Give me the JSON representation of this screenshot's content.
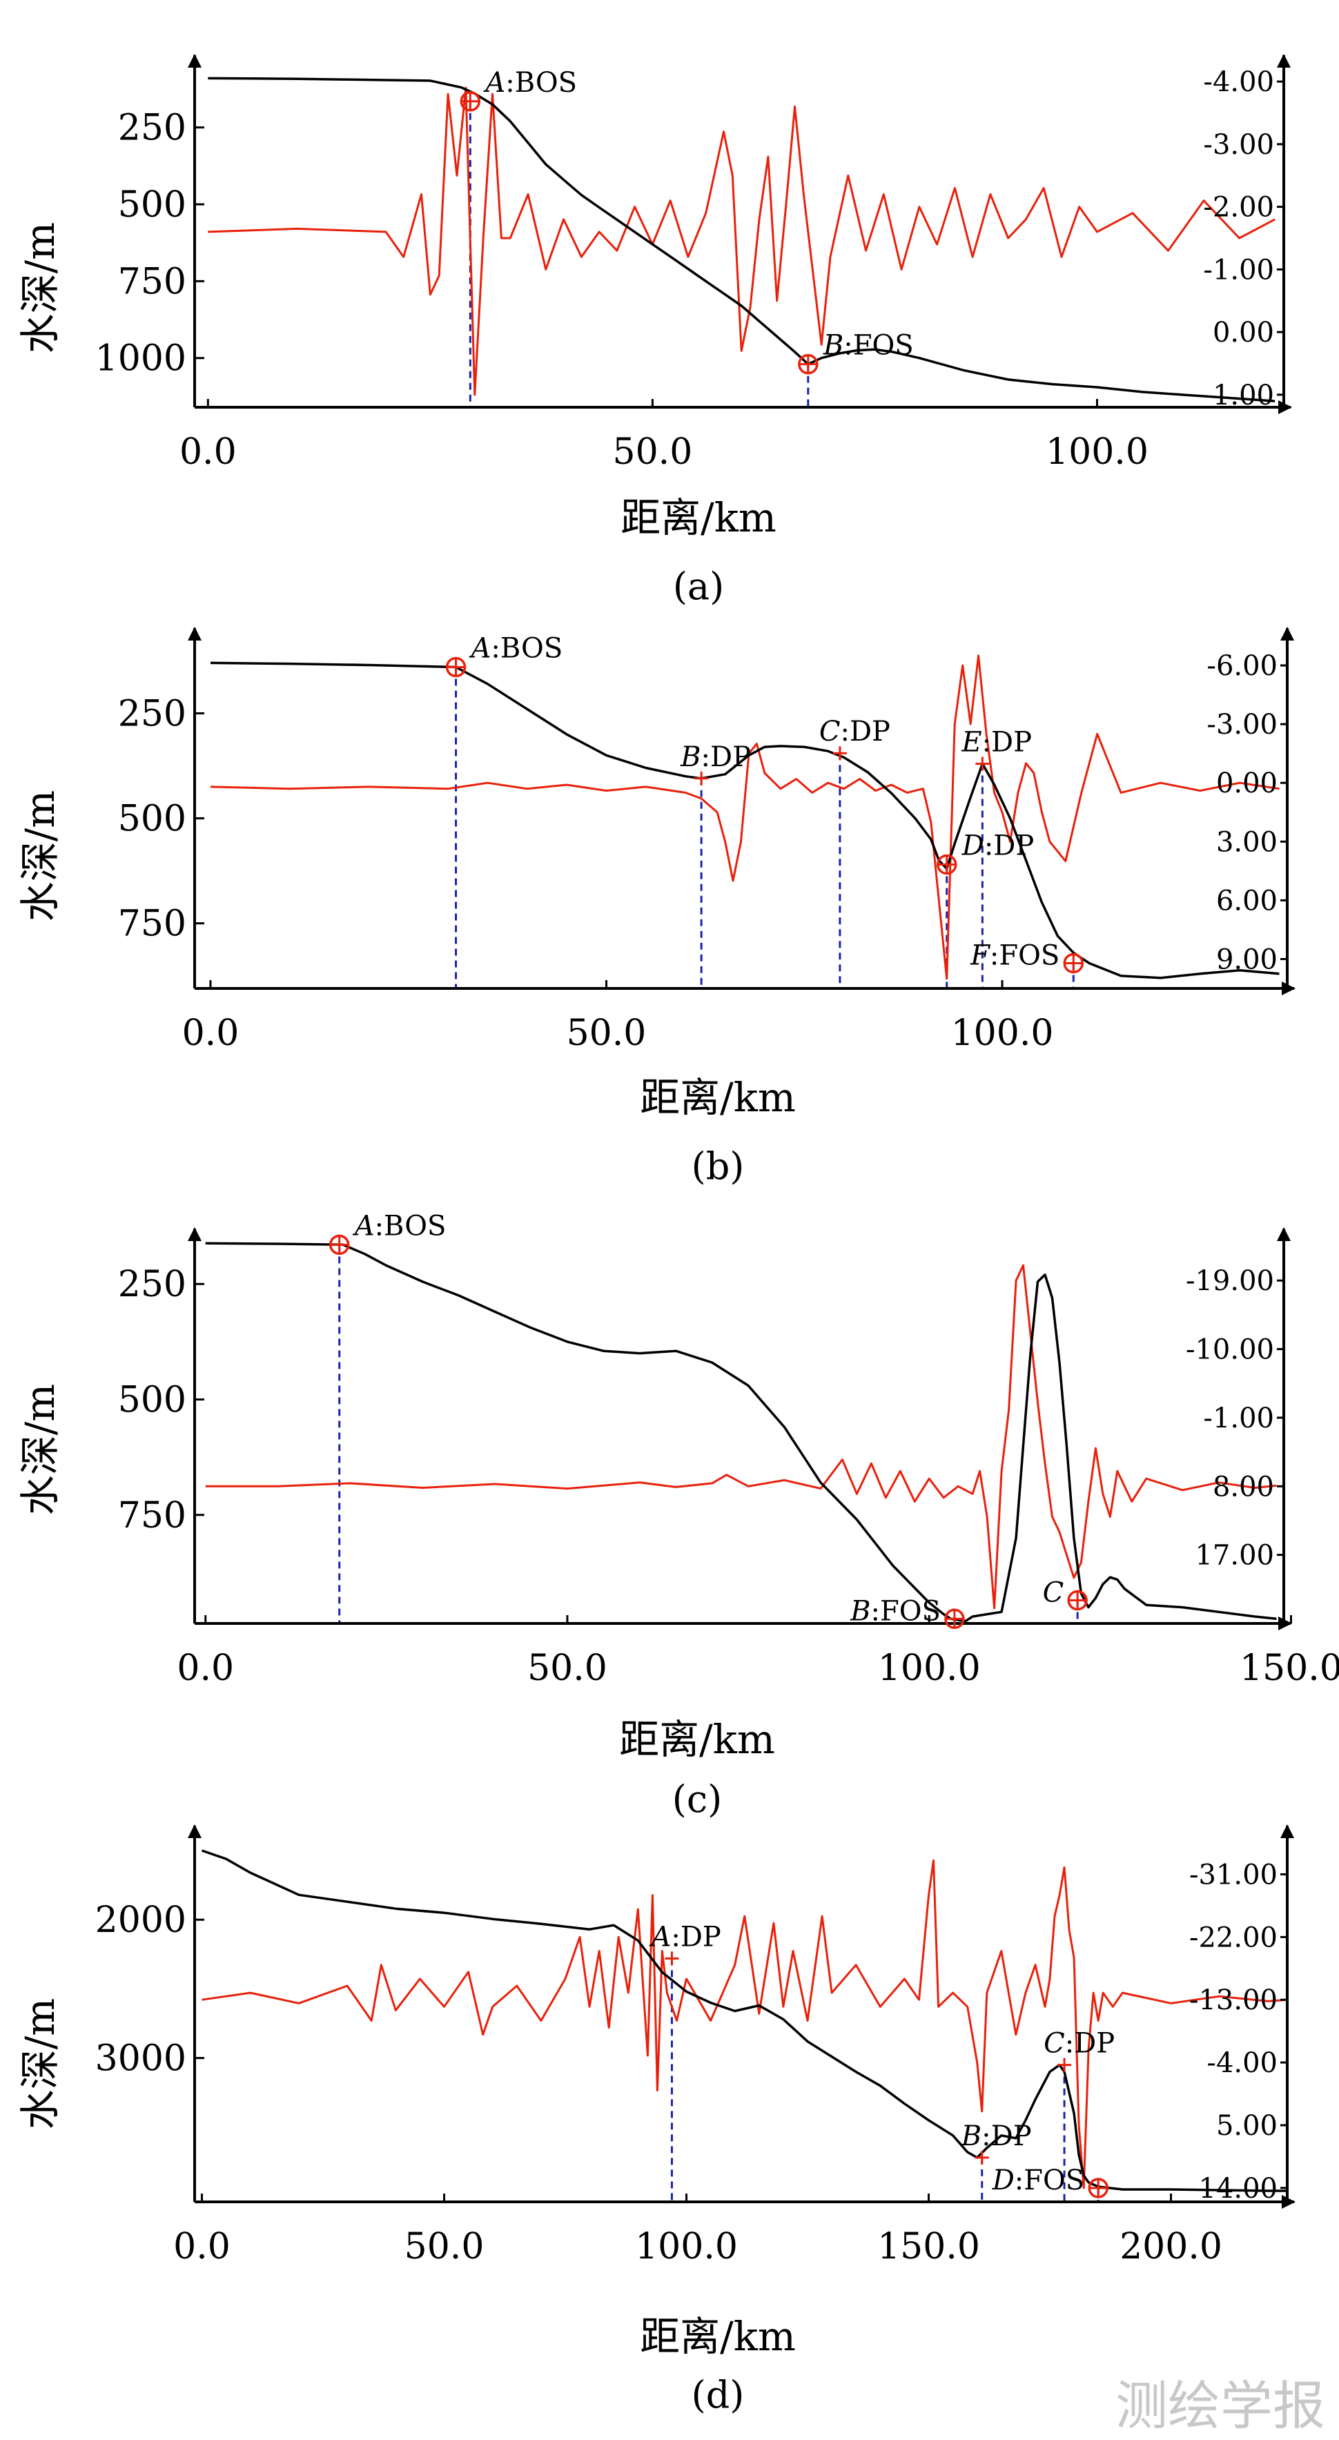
{
  "watermark": "测绘学报",
  "colors": {
    "depth_line": "#000000",
    "gravity_line": "#e8210c",
    "marker": "#e8210c",
    "guide": "#1a24a8"
  },
  "chart_data": [
    {
      "type": "line",
      "panel": "(a)",
      "caption": "(a)",
      "xlabel": "距离/km",
      "ylabel": "水深/m",
      "xlim": [
        -1.5,
        121
      ],
      "xticks": [
        0,
        50,
        100
      ],
      "xtick_labels": [
        "0.0",
        "50.0",
        "100.0"
      ],
      "ylim": [
        60,
        1160
      ],
      "yticks": [
        250,
        500,
        750,
        1000
      ],
      "ytick_labels": [
        "250",
        "500",
        "750",
        "1000"
      ],
      "right_ylim": [
        -4.2,
        1.2
      ],
      "right_ticks": [
        -4,
        -3,
        -2,
        -1,
        0,
        1
      ],
      "right_tick_labels": [
        "-4.00",
        "-3.00",
        "-2.00",
        "-1.00",
        "0.00",
        "1.00"
      ],
      "bathymetry": {
        "x": [
          0,
          5,
          10,
          15,
          20,
          25,
          28.5,
          30,
          32,
          34,
          36,
          38,
          40,
          42,
          44,
          46,
          48,
          50,
          52,
          54,
          56,
          58,
          60,
          62,
          64,
          66,
          67.5,
          69,
          71,
          73,
          75,
          77,
          80,
          85,
          90,
          95,
          100,
          105,
          110,
          115,
          120
        ],
        "y": [
          90,
          91,
          92,
          94,
          96,
          98,
          120,
          140,
          175,
          230,
          300,
          370,
          420,
          470,
          510,
          550,
          590,
          630,
          670,
          710,
          750,
          790,
          830,
          880,
          930,
          980,
          1020,
          1000,
          985,
          975,
          972,
          980,
          1000,
          1040,
          1070,
          1085,
          1095,
          1110,
          1120,
          1130,
          1140
        ]
      },
      "gravity_anomaly": {
        "x": [
          0,
          10,
          20,
          22,
          24,
          25,
          26,
          27,
          28,
          29,
          30,
          31,
          32,
          33,
          34,
          36,
          38,
          40,
          42,
          44,
          46,
          48,
          50,
          52,
          54,
          56,
          58,
          59,
          60,
          61,
          62,
          63,
          64,
          65,
          66,
          67,
          68,
          69,
          70,
          72,
          74,
          76,
          78,
          80,
          82,
          84,
          86,
          88,
          90,
          92,
          94,
          96,
          98,
          100,
          104,
          108,
          112,
          116,
          120
        ],
        "y": [
          -1.6,
          -1.65,
          -1.6,
          -1.2,
          -2.2,
          -0.6,
          -0.9,
          -3.8,
          -2.5,
          -3.9,
          1.0,
          -1.6,
          -3.8,
          -1.5,
          -1.5,
          -2.2,
          -1.0,
          -1.8,
          -1.2,
          -1.6,
          -1.3,
          -2.0,
          -1.4,
          -2.1,
          -1.2,
          -1.9,
          -3.2,
          -2.5,
          0.3,
          -0.4,
          -1.8,
          -2.8,
          -0.5,
          -2.0,
          -3.6,
          -2.2,
          -1.0,
          0.2,
          -1.2,
          -2.5,
          -1.3,
          -2.2,
          -1.0,
          -2.0,
          -1.4,
          -2.3,
          -1.2,
          -2.2,
          -1.5,
          -1.8,
          -2.3,
          -1.2,
          -2.0,
          -1.6,
          -1.9,
          -1.3,
          -2.1,
          -1.5,
          -1.8
        ]
      },
      "markers": [
        {
          "x": 29.5,
          "y": 165,
          "letter": "A",
          "label": ":BOS"
        },
        {
          "x": 67.5,
          "y": 1020,
          "letter": "B",
          "label": ":FOS"
        }
      ]
    },
    {
      "type": "line",
      "panel": "(b)",
      "caption": "(b)",
      "xlabel": "距离/km",
      "ylabel": "水深/m",
      "xlim": [
        -2,
        136
      ],
      "xticks": [
        0,
        50,
        100
      ],
      "xtick_labels": [
        "0.0",
        "50.0",
        "100.0"
      ],
      "ylim": [
        80,
        905
      ],
      "yticks": [
        250,
        500,
        750
      ],
      "ytick_labels": [
        "250",
        "500",
        "750"
      ],
      "right_ylim": [
        -7.2,
        10.5
      ],
      "right_ticks": [
        -6,
        -3,
        0,
        3,
        6,
        9
      ],
      "right_tick_labels": [
        "-6.00",
        "-3.00",
        "0.00",
        "3.00",
        "6.00",
        "9.00"
      ],
      "bathymetry": {
        "x": [
          0,
          10,
          20,
          31,
          35,
          40,
          45,
          50,
          55,
          60,
          62,
          65,
          68,
          70,
          72,
          75,
          78,
          80,
          83,
          86,
          89,
          91,
          92,
          93,
          94,
          96,
          97.5,
          99,
          101,
          103,
          105,
          107,
          109,
          111,
          115,
          120,
          125,
          130,
          135
        ],
        "y": [
          130,
          132,
          135,
          140,
          180,
          240,
          300,
          350,
          380,
          400,
          405,
          395,
          350,
          330,
          328,
          330,
          340,
          355,
          390,
          440,
          500,
          550,
          600,
          620,
          560,
          450,
          370,
          420,
          500,
          600,
          700,
          780,
          820,
          845,
          875,
          880,
          870,
          862,
          870
        ]
      },
      "gravity_anomaly": {
        "x": [
          0,
          10,
          20,
          30,
          35,
          40,
          45,
          50,
          55,
          60,
          62,
          64,
          65,
          66,
          67,
          68,
          69,
          70,
          72,
          74,
          76,
          78,
          80,
          82,
          84,
          86,
          88,
          90,
          91,
          92,
          93,
          94,
          95,
          96,
          97,
          98,
          99,
          100,
          101,
          102,
          103,
          104,
          105,
          106,
          108,
          110,
          112,
          115,
          120,
          125,
          130,
          135
        ],
        "y": [
          0.2,
          0.3,
          0.2,
          0.3,
          0.0,
          0.3,
          0.1,
          0.4,
          0.2,
          0.5,
          0.8,
          1.5,
          3.0,
          5.0,
          3.0,
          -1.5,
          -2.0,
          -0.5,
          0.3,
          -0.2,
          0.5,
          0.0,
          0.3,
          -0.2,
          0.4,
          0.1,
          0.5,
          0.3,
          2.0,
          6.0,
          10.0,
          -3.0,
          -6.0,
          -3.0,
          -6.5,
          -2.5,
          0.5,
          1.5,
          3.0,
          0.5,
          -1.0,
          -0.5,
          1.5,
          3.0,
          4.0,
          0.5,
          -2.5,
          0.5,
          0.0,
          0.4,
          0.0,
          0.3
        ]
      },
      "markers": [
        {
          "x": 31,
          "y": 140,
          "letter": "A",
          "label": ":BOS"
        },
        {
          "x": 93,
          "y": 610,
          "letter": "D",
          "label": ":DP"
        },
        {
          "x": 109,
          "y": 845,
          "letter": "F",
          "label": ":FOS"
        }
      ],
      "dp_points": [
        {
          "x": 62,
          "y": 405,
          "letter": "B",
          "label": ":DP"
        },
        {
          "x": 79.5,
          "y": 345,
          "letter": "C",
          "label": ":DP"
        },
        {
          "x": 97.5,
          "y": 370,
          "letter": "E",
          "label": ":DP"
        }
      ]
    },
    {
      "type": "line",
      "panel": "(c)",
      "caption": "(c)",
      "xlabel": "距离/km",
      "ylabel": "水深/m",
      "xlim": [
        -1.5,
        149
      ],
      "xticks": [
        0,
        50,
        100,
        150
      ],
      "xtick_labels": [
        "0.0",
        "50.0",
        "100.0",
        "150.0"
      ],
      "ylim": [
        160,
        985
      ],
      "yticks": [
        250,
        500,
        750
      ],
      "ytick_labels": [
        "250",
        "500",
        "750"
      ],
      "right_ylim": [
        -24,
        26
      ],
      "right_ticks": [
        -19,
        -10,
        -1,
        8,
        17
      ],
      "right_tick_labels": [
        "-19.00",
        "-10.00",
        "-1.00",
        "8.00",
        "17.00"
      ],
      "bathymetry": {
        "x": [
          0,
          10,
          19,
          22,
          25,
          30,
          35,
          40,
          45,
          50,
          55,
          60,
          65,
          70,
          75,
          80,
          85,
          90,
          95,
          100,
          102,
          103,
          105,
          106,
          108,
          110,
          112,
          113,
          114,
          115,
          116,
          117,
          118,
          119,
          120,
          121,
          122,
          123,
          124,
          125,
          126,
          127,
          130,
          135,
          140,
          145,
          148
        ],
        "y": [
          162,
          163,
          165,
          185,
          210,
          245,
          275,
          310,
          345,
          375,
          395,
          400,
          395,
          420,
          470,
          560,
          680,
          760,
          860,
          940,
          965,
          975,
          980,
          970,
          965,
          960,
          800,
          600,
          400,
          245,
          230,
          280,
          420,
          600,
          800,
          920,
          950,
          930,
          900,
          885,
          890,
          910,
          945,
          950,
          960,
          970,
          975
        ]
      },
      "gravity_anomaly": {
        "x": [
          0,
          10,
          20,
          30,
          40,
          50,
          60,
          65,
          70,
          72,
          75,
          80,
          85,
          88,
          90,
          92,
          94,
          96,
          98,
          100,
          102,
          104,
          106,
          107,
          108,
          109,
          110,
          111,
          112,
          113,
          114,
          115,
          116,
          117,
          118,
          119,
          120,
          121,
          122,
          123,
          124,
          125,
          126,
          128,
          130,
          135,
          140,
          145,
          148
        ],
        "y": [
          8.0,
          8.0,
          7.6,
          8.2,
          7.7,
          8.3,
          7.5,
          8.1,
          7.6,
          6.5,
          8.0,
          7.2,
          8.3,
          4.5,
          9.0,
          5.0,
          9.5,
          6.0,
          10.0,
          7.0,
          9.5,
          8.0,
          9.0,
          6.0,
          12.0,
          24.0,
          6.0,
          -2.0,
          -19.0,
          -21.0,
          -12.0,
          -3.0,
          5.0,
          12.0,
          14.0,
          17.0,
          20.0,
          18.0,
          10.0,
          3.0,
          9.0,
          12.0,
          6.0,
          10.0,
          7.0,
          8.5,
          7.5,
          8.2,
          7.9
        ]
      },
      "markers": [
        {
          "x": 18.5,
          "y": 165,
          "letter": "A",
          "label": ":BOS"
        },
        {
          "x": 103.5,
          "y": 975,
          "letter": "B",
          "label": ":FOS"
        },
        {
          "x": 120.5,
          "y": 935,
          "letter": "C",
          "label": ""
        }
      ]
    },
    {
      "type": "line",
      "panel": "(d)",
      "caption": "(d)",
      "xlabel": "距离/km",
      "ylabel": "水深/m",
      "xlim": [
        -1.5,
        224
      ],
      "xticks": [
        0,
        50,
        100,
        150,
        200
      ],
      "xtick_labels": [
        "0.0",
        "50.0",
        "100.0",
        "150.0",
        "200.0"
      ],
      "ylim": [
        1420,
        4040
      ],
      "yticks": [
        2000,
        3000
      ],
      "ytick_labels": [
        "2000",
        "3000"
      ],
      "right_ylim": [
        -36,
        16
      ],
      "right_ticks": [
        -31,
        -22,
        -13,
        -4,
        5,
        14
      ],
      "right_tick_labels": [
        "-31.00",
        "-22.00",
        "-13.00",
        "-4.00",
        "5.00",
        "14.00"
      ],
      "bathymetry": {
        "x": [
          0,
          5,
          10,
          20,
          30,
          40,
          50,
          60,
          70,
          80,
          85,
          90,
          95,
          100,
          105,
          110,
          115,
          120,
          125,
          130,
          135,
          140,
          145,
          150,
          155,
          158,
          160,
          162,
          165,
          168,
          170,
          172,
          175,
          177,
          178,
          180,
          181,
          182,
          183,
          185,
          190,
          200,
          210,
          220,
          224
        ],
        "y": [
          1500,
          1560,
          1660,
          1820,
          1870,
          1920,
          1950,
          1995,
          2030,
          2070,
          2040,
          2150,
          2380,
          2520,
          2600,
          2660,
          2620,
          2720,
          2880,
          2990,
          3100,
          3200,
          3330,
          3450,
          3560,
          3680,
          3720,
          3650,
          3560,
          3580,
          3450,
          3300,
          3100,
          3050,
          3100,
          3400,
          3700,
          3850,
          3900,
          3930,
          3950,
          3950,
          3955,
          3960,
          3960
        ]
      },
      "gravity_anomaly": {
        "x": [
          0,
          10,
          20,
          30,
          35,
          37,
          40,
          45,
          50,
          55,
          58,
          60,
          65,
          70,
          75,
          78,
          80,
          82,
          84,
          86,
          88,
          90,
          92,
          93,
          94,
          95,
          96,
          98,
          100,
          105,
          110,
          112,
          115,
          118,
          120,
          122,
          125,
          128,
          130,
          135,
          140,
          145,
          148,
          150,
          151,
          152,
          155,
          158,
          160,
          161,
          162,
          165,
          168,
          170,
          172,
          174,
          175,
          176,
          177,
          178,
          179,
          180,
          181,
          182,
          183,
          184,
          185,
          186,
          188,
          190,
          200,
          210,
          220,
          224
        ],
        "y": [
          -13.0,
          -14.0,
          -12.5,
          -15.0,
          -10.0,
          -18.0,
          -11.5,
          -16.0,
          -12.0,
          -17.0,
          -8.0,
          -12.0,
          -15.0,
          -10.0,
          -16.0,
          -22.0,
          -12.0,
          -20.0,
          -9.0,
          -22.0,
          -14.0,
          -26.0,
          -5.0,
          -28.0,
          0.0,
          -20.0,
          -14.0,
          -10.0,
          -16.0,
          -10.0,
          -18.0,
          -25.0,
          -11.0,
          -24.0,
          -12.0,
          -20.0,
          -10.0,
          -25.0,
          -14.0,
          -18.0,
          -12.0,
          -16.0,
          -13.0,
          -28.0,
          -33.0,
          -12.0,
          -14.0,
          -12.0,
          -4.0,
          3.0,
          -14.0,
          -20.0,
          -8.0,
          -14.0,
          -18.0,
          -12.0,
          -16.0,
          -25.0,
          -28.0,
          -32.0,
          -23.0,
          -19.0,
          5.0,
          14.0,
          -6.0,
          -14.0,
          -10.0,
          -14.0,
          -12.0,
          -14.0,
          -12.5,
          -13.5,
          -12.8,
          -13.0
        ]
      },
      "markers": [
        {
          "x": 185,
          "y": 3940,
          "letter": "D",
          "label": ":FOS"
        }
      ],
      "dp_points": [
        {
          "x": 97,
          "y": 2280,
          "letter": "A",
          "label": ":DP"
        },
        {
          "x": 161,
          "y": 3720,
          "letter": "B",
          "label": ":DP"
        },
        {
          "x": 178,
          "y": 3050,
          "letter": "C",
          "label": ":DP"
        }
      ]
    }
  ]
}
